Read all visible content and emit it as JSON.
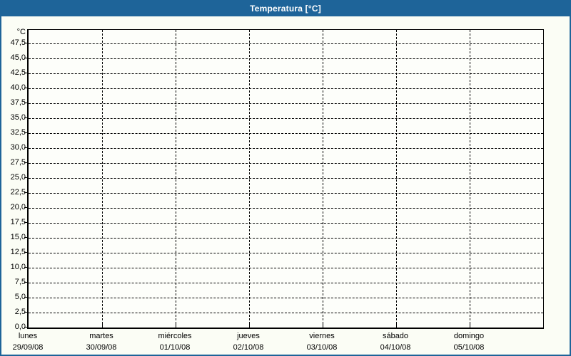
{
  "window": {
    "title": "Temperatura [°C]"
  },
  "colors": {
    "titlebar": "#1E6499",
    "frame": "#1E6499",
    "background": "#FBFDF5",
    "plot_background": "#FDFEFA",
    "grid": "#000000",
    "label_text": "#000000",
    "title_text": "#FFFFFF"
  },
  "chart_data": {
    "type": "line",
    "title": "Temperatura [°C]",
    "ylabel": "°C",
    "y_axis": {
      "unit": "°C",
      "min": 0,
      "max": 50,
      "tick_step": 2.5,
      "tick_labels": [
        "0,0",
        "2,5",
        "5,0",
        "7,5",
        "10,0",
        "12,5",
        "15,0",
        "17,5",
        "20,0",
        "22,5",
        "25,0",
        "27,5",
        "30,0",
        "32,5",
        "35,0",
        "37,5",
        "40,0",
        "42,5",
        "45,0",
        "47,5"
      ]
    },
    "x_axis": {
      "days": [
        {
          "name": "lunes",
          "date": "29/09/08"
        },
        {
          "name": "martes",
          "date": "30/09/08"
        },
        {
          "name": "miércoles",
          "date": "01/10/08"
        },
        {
          "name": "jueves",
          "date": "02/10/08"
        },
        {
          "name": "viernes",
          "date": "03/10/08"
        },
        {
          "name": "sábado",
          "date": "04/10/08"
        },
        {
          "name": "domingo",
          "date": "05/10/08"
        }
      ]
    },
    "series": [],
    "grid": {
      "horizontal": "dashed",
      "vertical": "dashed"
    },
    "legend": "none"
  }
}
